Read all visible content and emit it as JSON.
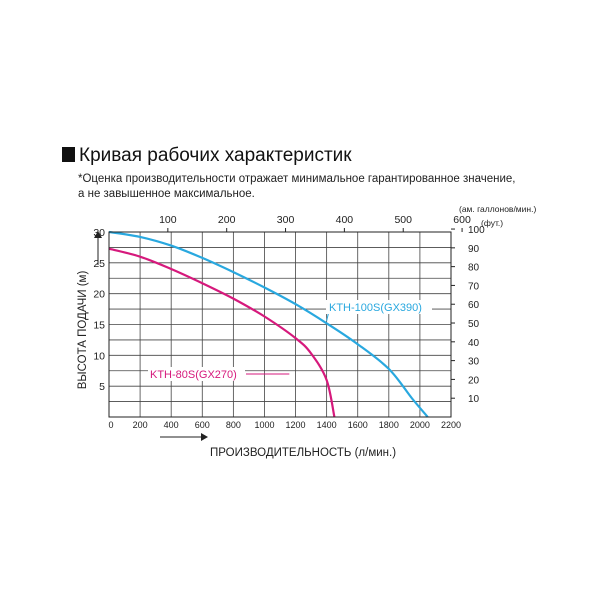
{
  "page": {
    "title": "Кривая рабочих характеристик",
    "note_line1": "*Оценка производительности отражает минимальное гарантированное значение,",
    "note_line2": "а не завышенное максимальное."
  },
  "chart_data": {
    "type": "line",
    "xlabel": "ПРОИЗВОДИТЕЛЬНОСТЬ (л/мин.)",
    "ylabel": "ВЫСОТА ПОДАЧИ (м)",
    "xlim": [
      0,
      2200
    ],
    "ylim": [
      0,
      30
    ],
    "x_ticks": [
      "0",
      "200",
      "400",
      "600",
      "800",
      "1000",
      "1200",
      "1400",
      "1600",
      "1800",
      "2000",
      "2200"
    ],
    "y_ticks": [
      "5",
      "10",
      "15",
      "20",
      "25",
      "30"
    ],
    "top_axis": {
      "label": "(ам. галлонов/мин.)",
      "ticks": [
        {
          "text": "100",
          "value": 100
        },
        {
          "text": "200",
          "value": 200
        },
        {
          "text": "300",
          "value": 300
        },
        {
          "text": "400",
          "value": 400
        },
        {
          "text": "500",
          "value": 500
        },
        {
          "text": "600",
          "value": 600
        }
      ]
    },
    "right_axis": {
      "label": "(фут.)",
      "ticks": [
        {
          "text": "10",
          "value": 10
        },
        {
          "text": "20",
          "value": 20
        },
        {
          "text": "30",
          "value": 30
        },
        {
          "text": "40",
          "value": 40
        },
        {
          "text": "50",
          "value": 50
        },
        {
          "text": "60",
          "value": 60
        },
        {
          "text": "70",
          "value": 70
        },
        {
          "text": "80",
          "value": 80
        },
        {
          "text": "90",
          "value": 90
        },
        {
          "text": "100",
          "value": 100
        }
      ]
    },
    "grid": true,
    "series": [
      {
        "name": "KTH-100S(GX390)",
        "color": "#29a8df",
        "points": [
          [
            0,
            30
          ],
          [
            200,
            29.2
          ],
          [
            400,
            27.8
          ],
          [
            600,
            25.8
          ],
          [
            800,
            23.5
          ],
          [
            1000,
            21.0
          ],
          [
            1200,
            18.3
          ],
          [
            1400,
            15.2
          ],
          [
            1600,
            11.8
          ],
          [
            1800,
            7.8
          ],
          [
            1950,
            3.0
          ],
          [
            2050,
            0
          ]
        ]
      },
      {
        "name": "KTH-80S(GX270)",
        "color": "#d6197c",
        "points": [
          [
            0,
            27.3
          ],
          [
            200,
            26.0
          ],
          [
            400,
            24.0
          ],
          [
            600,
            21.7
          ],
          [
            800,
            19.2
          ],
          [
            1000,
            16.3
          ],
          [
            1200,
            12.8
          ],
          [
            1300,
            10.3
          ],
          [
            1400,
            6.0
          ],
          [
            1450,
            0
          ]
        ]
      }
    ]
  }
}
